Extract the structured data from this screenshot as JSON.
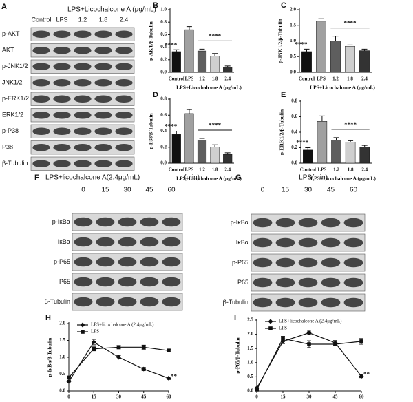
{
  "blot_a": {
    "panel": "A",
    "header": "LPS+Licochalcone A (μg/mL)",
    "lanes": [
      "Control",
      "LPS",
      "1.2",
      "1.8",
      "2.4"
    ],
    "rows": [
      "p-AKT",
      "AKT",
      "p-JNK1/2",
      "JNK1/2",
      "p-ERK1/2",
      "ERK1/2",
      "p-P38",
      "P38",
      "β-Tubulin"
    ]
  },
  "blot_f": {
    "panel": "F",
    "header": "LPS+licochalcone A(2.4μg/mL)",
    "unit": "(min)",
    "lanes": [
      "0",
      "15",
      "30",
      "45",
      "60"
    ],
    "rows": [
      "p-IκBα",
      "IκBα",
      "p-P65",
      "P65",
      "β-Tubulin"
    ]
  },
  "blot_g": {
    "panel": "G",
    "header": "LPS(min)",
    "lanes": [
      "0",
      "15",
      "30",
      "45",
      "60"
    ],
    "rows": [
      "p-IκBα",
      "IκBα",
      "p-P65",
      "P65",
      "β-Tubulin"
    ]
  },
  "chart_data": [
    {
      "type": "bar",
      "panel": "B",
      "y_label": "p-AKT/β-Tubulin",
      "x_label": "LPS+Licochalcone A (μg/mL)",
      "categories": [
        "Control",
        "LPS",
        "1.2",
        "1.8",
        "2.4"
      ],
      "values": [
        0.33,
        0.68,
        0.34,
        0.26,
        0.08
      ],
      "errors": [
        0.03,
        0.05,
        0.03,
        0.04,
        0.02
      ],
      "colors": [
        "#111111",
        "#a0a0a0",
        "#5e5e5e",
        "#cfcfcf",
        "#333333"
      ],
      "ylim": [
        0,
        1.0
      ],
      "yticks": [
        {
          "value": 0,
          "label": "0.0"
        },
        0.2,
        0.4,
        0.6,
        0.8,
        {
          "value": 1.0,
          "label": "1.0"
        }
      ],
      "annotations": [
        "****",
        "****"
      ]
    },
    {
      "type": "bar",
      "panel": "C",
      "y_label": "p-JNK1/2/β-Tubulin",
      "x_label": "LPS+Licochalcone A (μg/mL)",
      "categories": [
        "Control",
        "LPS",
        "1.2",
        "1.8",
        "2.4"
      ],
      "values": [
        0.66,
        1.63,
        1.0,
        0.83,
        0.69
      ],
      "errors": [
        0.08,
        0.08,
        0.15,
        0.04,
        0.05
      ],
      "colors": [
        "#111111",
        "#a0a0a0",
        "#5e5e5e",
        "#cfcfcf",
        "#333333"
      ],
      "ylim": [
        0,
        2.0
      ],
      "yticks": [
        {
          "value": 0,
          "label": "0.0"
        },
        0.5,
        {
          "value": 1.0,
          "label": "1.0"
        },
        1.5,
        {
          "value": 2.0,
          "label": "2.0"
        }
      ],
      "annotations": [
        "****",
        "****"
      ]
    },
    {
      "type": "bar",
      "panel": "D",
      "y_label": "p-P38/β-Tubulin",
      "x_label": "LPS+Licochalcone A (μg/mL)",
      "categories": [
        "Control",
        "LPS",
        "1.2",
        "1.8",
        "2.4"
      ],
      "values": [
        0.36,
        0.62,
        0.29,
        0.2,
        0.11
      ],
      "errors": [
        0.04,
        0.05,
        0.02,
        0.03,
        0.02
      ],
      "colors": [
        "#111111",
        "#a0a0a0",
        "#5e5e5e",
        "#cfcfcf",
        "#333333"
      ],
      "ylim": [
        0,
        0.8
      ],
      "yticks": [
        {
          "value": 0,
          "label": "0.0"
        },
        0.2,
        0.4,
        0.6,
        0.8
      ],
      "annotations": [
        "****",
        "****"
      ]
    },
    {
      "type": "bar",
      "panel": "E",
      "y_label": "p-ERK1/2/β-Tubulin",
      "x_label": "LPS+Licochalcone A (μg/mL)",
      "categories": [
        "Control",
        "LPS",
        "1.2",
        "1.8",
        "2.4"
      ],
      "values": [
        0.17,
        0.54,
        0.3,
        0.27,
        0.21
      ],
      "errors": [
        0.03,
        0.07,
        0.03,
        0.02,
        0.02
      ],
      "colors": [
        "#111111",
        "#a0a0a0",
        "#5e5e5e",
        "#cfcfcf",
        "#333333"
      ],
      "ylim": [
        0,
        0.8
      ],
      "yticks": [
        {
          "value": 0,
          "label": "0.0"
        },
        0.2,
        0.4,
        0.6,
        0.8
      ],
      "annotations": [
        "****",
        "****"
      ]
    },
    {
      "type": "line",
      "panel": "H",
      "y_label": "p-IκBα/β-Tubulin",
      "x": [
        0,
        15,
        30,
        45,
        60
      ],
      "xlim": [
        0,
        60
      ],
      "xticks": [
        0,
        15,
        30,
        45,
        60
      ],
      "ylim": [
        0,
        2.0
      ],
      "yticks": [
        {
          "value": 0,
          "label": "0.0"
        },
        0.5,
        {
          "value": 1.0,
          "label": "1.0"
        },
        1.5,
        {
          "value": 2.0,
          "label": "2.0"
        }
      ],
      "series": [
        {
          "name": "LPS+licochalcone A (2.4μg/mL)",
          "color": "#111111",
          "marker": "diamond",
          "values": [
            0.28,
            1.45,
            1.0,
            0.65,
            0.38
          ],
          "errors": [
            0.04,
            0.08,
            0.05,
            0.05,
            0.04
          ]
        },
        {
          "name": "LPS",
          "color": "#111111",
          "marker": "square",
          "values": [
            0.4,
            1.25,
            1.3,
            1.3,
            1.2
          ],
          "errors": [
            0.04,
            0.06,
            0.05,
            0.06,
            0.04
          ]
        }
      ],
      "annotations": [
        "**"
      ]
    },
    {
      "type": "line",
      "panel": "I",
      "y_label": "p-P65/β-Tubulin",
      "x": [
        0,
        15,
        30,
        45,
        60
      ],
      "xlim": [
        0,
        60
      ],
      "xticks": [
        0,
        15,
        30,
        45,
        60
      ],
      "ylim": [
        0,
        2.5
      ],
      "yticks": [
        {
          "value": 0,
          "label": "0.0"
        },
        0.5,
        {
          "value": 1.0,
          "label": "1.0"
        },
        1.5,
        {
          "value": 2.0,
          "label": "2.0"
        },
        2.5
      ],
      "series": [
        {
          "name": "LPS+licochalcone A (2.4μg/mL)",
          "color": "#111111",
          "marker": "diamond",
          "values": [
            0.1,
            1.75,
            2.05,
            1.7,
            0.52
          ],
          "errors": [
            0.04,
            0.08,
            0.06,
            0.08,
            0.05
          ]
        },
        {
          "name": "LPS",
          "color": "#111111",
          "marker": "square",
          "values": [
            0.05,
            1.85,
            1.65,
            1.65,
            1.75
          ],
          "errors": [
            0.03,
            0.08,
            0.12,
            0.06,
            0.1
          ]
        }
      ],
      "annotations": [
        "**"
      ]
    }
  ]
}
